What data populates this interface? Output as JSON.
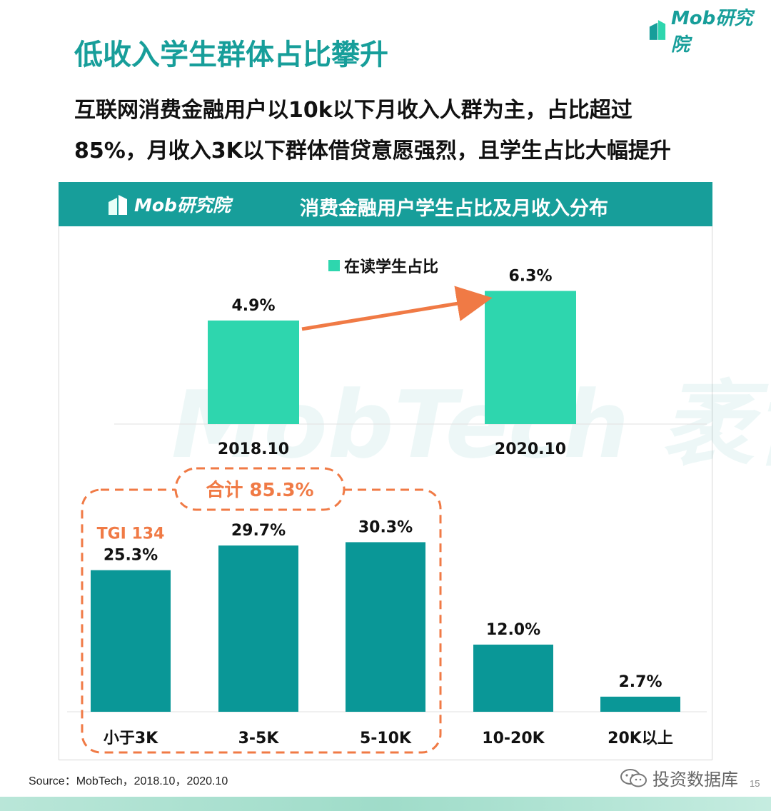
{
  "page": {
    "title": "低收入学生群体占比攀升",
    "subtitle_lines": [
      "互联网消费金融用户以10k以下月收入人群为主，占比超过",
      "85%，月收入3K以下群体借贷意愿强烈，且学生占比大幅提升"
    ],
    "logo_text": "Mob研究院",
    "source": "Source：MobTech，2018.10，2020.10",
    "watermark": "MobTech 袤博",
    "wechat_label": "投资数据库",
    "page_number": "15"
  },
  "panel": {
    "logo_text": "Mob研究院",
    "title": "消费金融用户学生占比及月收入分布"
  },
  "colors": {
    "brand_teal": "#179e9a",
    "student_bar": "#2ed6ae",
    "income_bar": "#0a9797",
    "accent_orange": "#f07a45"
  },
  "chart_data": [
    {
      "type": "bar",
      "categories": [
        "2018.10",
        "2020.10"
      ],
      "series": [
        {
          "name": "在读学生占比",
          "values": [
            4.9,
            6.3
          ]
        }
      ],
      "data_labels": [
        "4.9%",
        "6.3%"
      ],
      "legend": "top-center",
      "annotation": "arrow from 2018.10 to 2020.10"
    },
    {
      "type": "bar",
      "categories": [
        "小于3K",
        "3-5K",
        "5-10K",
        "10-20K",
        "20K以上"
      ],
      "values": [
        25.3,
        29.7,
        30.3,
        12.0,
        2.7
      ],
      "data_labels": [
        "25.3%",
        "29.7%",
        "30.3%",
        "12.0%",
        "2.7%"
      ],
      "group_label": "合计 85.3%",
      "group_categories": [
        "小于3K",
        "3-5K",
        "5-10K"
      ],
      "tgi_label": "TGI 134"
    }
  ]
}
